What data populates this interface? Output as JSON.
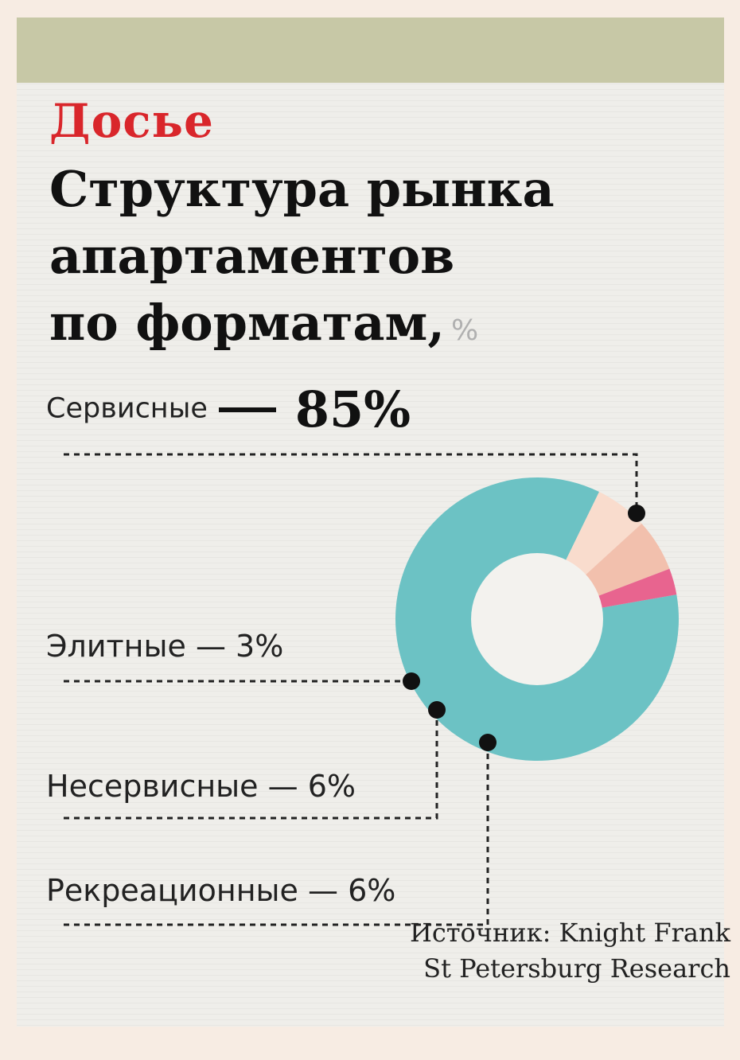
{
  "header": {
    "kicker": "Досье",
    "title_lines": [
      "Структура рынка",
      "апартаментов",
      "по форматам,"
    ],
    "unit": "%"
  },
  "labels": {
    "main_name": "Сервисные",
    "main_value": "85%",
    "elite": "Элитные — 3%",
    "nonservice": "Несервисные — 6%",
    "recreation": "Рекреационные — 6%"
  },
  "source": {
    "line1": "Источник:  Knight Frank",
    "line2": "St Petersburg Research"
  },
  "colors": {
    "background": "#f7ece3",
    "card": "#efeeea",
    "band": "#c7c8a6",
    "kicker": "#d9262b",
    "service": "#6cc2c4",
    "elite": "#e8648f",
    "nonservice": "#f2c0ad",
    "recreation": "#f9dccd",
    "hole": "#f3f2ee"
  },
  "chart_data": {
    "type": "pie",
    "donut": true,
    "title": "Структура рынка апартаментов по форматам, %",
    "slices": [
      {
        "label": "Сервисные",
        "value": 85,
        "color": "#6cc2c4"
      },
      {
        "label": "Рекреационные",
        "value": 6,
        "color": "#f9dccd"
      },
      {
        "label": "Несервисные",
        "value": 6,
        "color": "#f2c0ad"
      },
      {
        "label": "Элитные",
        "value": 3,
        "color": "#e8648f"
      }
    ]
  }
}
